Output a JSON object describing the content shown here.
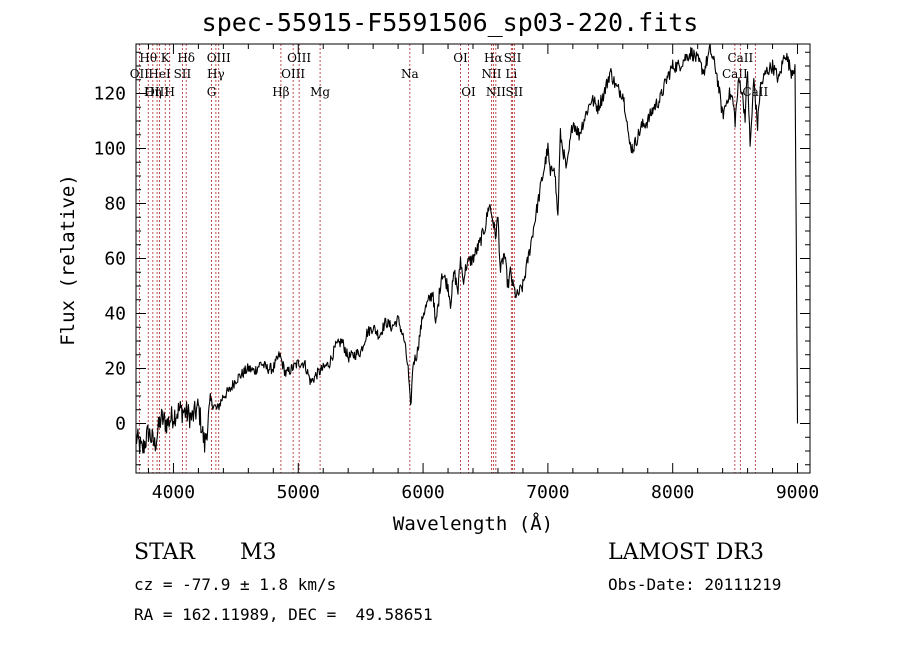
{
  "header": {
    "title": "spec-55915-F5591506_sp03-220.fits"
  },
  "info": {
    "class_label": "STAR",
    "subclass": "M3",
    "cz": "cz = -77.9 ± 1.8 km/s",
    "coords": "RA = 162.11989, DEC =  49.58651",
    "survey": "LAMOST DR3",
    "obs_date": "Obs-Date: 20111219"
  },
  "colors": {
    "line": "#000000",
    "marker": "#b22222",
    "bg": "#ffffff"
  },
  "chart_data": {
    "type": "line",
    "title": "spec-55915-F5591506_sp03-220.fits",
    "xlabel": "Wavelength (Å)",
    "ylabel": "Flux (relative)",
    "xlim": [
      3700,
      9100
    ],
    "ylim": [
      -18,
      138
    ],
    "xticks": [
      4000,
      5000,
      6000,
      7000,
      8000,
      9000
    ],
    "yticks": [
      0,
      20,
      40,
      60,
      80,
      100,
      120
    ],
    "series": [
      {
        "name": "flux",
        "x": [
          3700,
          3750,
          3800,
          3850,
          3900,
          3950,
          4000,
          4050,
          4100,
          4150,
          4200,
          4250,
          4300,
          4350,
          4400,
          4450,
          4500,
          4550,
          4600,
          4650,
          4700,
          4750,
          4800,
          4850,
          4900,
          4950,
          5000,
          5050,
          5100,
          5150,
          5200,
          5250,
          5300,
          5350,
          5400,
          5450,
          5500,
          5550,
          5600,
          5650,
          5700,
          5750,
          5800,
          5850,
          5880,
          5900,
          5920,
          5950,
          6000,
          6050,
          6080,
          6100,
          6150,
          6200,
          6220,
          6250,
          6280,
          6300,
          6320,
          6350,
          6400,
          6450,
          6500,
          6530,
          6560,
          6580,
          6600,
          6620,
          6650,
          6680,
          6700,
          6720,
          6750,
          6800,
          6850,
          6900,
          6950,
          7000,
          7020,
          7050,
          7080,
          7100,
          7150,
          7200,
          7250,
          7300,
          7350,
          7400,
          7450,
          7500,
          7550,
          7600,
          7630,
          7650,
          7680,
          7700,
          7750,
          7800,
          7850,
          7900,
          7950,
          8000,
          8050,
          8100,
          8150,
          8200,
          8250,
          8300,
          8350,
          8400,
          8450,
          8480,
          8500,
          8530,
          8550,
          8580,
          8600,
          8620,
          8650,
          8680,
          8700,
          8750,
          8800,
          8850,
          8900,
          8950,
          8980,
          9000
        ],
        "y": [
          -5,
          -10,
          -3,
          -8,
          2,
          0,
          3,
          5,
          4,
          2,
          6,
          -8,
          8,
          5,
          10,
          12,
          16,
          18,
          20,
          19,
          22,
          20,
          20,
          25,
          18,
          20,
          22,
          22,
          15,
          18,
          20,
          22,
          28,
          30,
          24,
          25,
          26,
          33,
          35,
          32,
          37,
          35,
          38,
          30,
          20,
          5,
          22,
          25,
          40,
          45,
          48,
          35,
          55,
          50,
          44,
          55,
          48,
          60,
          52,
          58,
          60,
          65,
          72,
          80,
          74,
          68,
          75,
          55,
          62,
          50,
          55,
          50,
          46,
          50,
          62,
          75,
          88,
          100,
          90,
          95,
          75,
          105,
          92,
          110,
          105,
          112,
          118,
          115,
          120,
          128,
          122,
          120,
          112,
          102,
          100,
          102,
          108,
          110,
          115,
          118,
          125,
          130,
          130,
          133,
          135,
          132,
          128,
          136,
          128,
          112,
          120,
          118,
          110,
          125,
          122,
          112,
          128,
          100,
          125,
          108,
          122,
          128,
          130,
          125,
          135,
          128,
          130,
          0
        ],
        "label_x": [
          3750,
          3820,
          3850,
          3900,
          3950,
          3980,
          4050,
          4100,
          4340,
          4370,
          4860,
          5010,
          5180,
          5890,
          6300,
          6370,
          6560,
          6580,
          6710,
          6730,
          8500,
          8540,
          8660
        ],
        "label_y": [
          -13,
          -6,
          -16,
          -1,
          3,
          -12,
          5,
          7,
          1,
          11,
          17,
          22,
          14,
          9,
          22,
          32,
          74,
          71,
          58,
          52,
          128,
          126,
          112
        ]
      }
    ],
    "lines": [
      {
        "x": 3727,
        "label": "OII",
        "row": 2
      },
      {
        "x": 3798,
        "label": "Hθ",
        "row": 1
      },
      {
        "x": 3835,
        "label": "Hη",
        "row": 3
      },
      {
        "x": 3869,
        "label": "OIII",
        "row": 3
      },
      {
        "x": 3889,
        "label": "HeI",
        "row": 2
      },
      {
        "x": 3934,
        "label": "K",
        "row": 1
      },
      {
        "x": 3970,
        "label": "H",
        "row": 3
      },
      {
        "x": 4072,
        "label": "SII",
        "row": 2
      },
      {
        "x": 4102,
        "label": "Hδ",
        "row": 1
      },
      {
        "x": 4305,
        "label": "G",
        "row": 3
      },
      {
        "x": 4340,
        "label": "Hγ",
        "row": 2
      },
      {
        "x": 4363,
        "label": "OIII",
        "row": 1
      },
      {
        "x": 4861,
        "label": "Hβ",
        "row": 3
      },
      {
        "x": 4959,
        "label": "OIII",
        "row": 2
      },
      {
        "x": 5007,
        "label": "OIII",
        "row": 1
      },
      {
        "x": 5175,
        "label": "Mg",
        "row": 3
      },
      {
        "x": 5894,
        "label": "Na",
        "row": 2
      },
      {
        "x": 6300,
        "label": "OI",
        "row": 1
      },
      {
        "x": 6364,
        "label": "OI",
        "row": 3
      },
      {
        "x": 6548,
        "label": "NII",
        "row": 2
      },
      {
        "x": 6563,
        "label": "Hα",
        "row": 1
      },
      {
        "x": 6583,
        "label": "NII",
        "row": 3
      },
      {
        "x": 6707,
        "label": "Li",
        "row": 2
      },
      {
        "x": 6717,
        "label": "SII",
        "row": 1
      },
      {
        "x": 6731,
        "label": "SII",
        "row": 3
      },
      {
        "x": 8498,
        "label": "CaII",
        "row": 2
      },
      {
        "x": 8542,
        "label": "CaII",
        "row": 1
      },
      {
        "x": 8662,
        "label": "CaII",
        "row": 3
      }
    ]
  }
}
